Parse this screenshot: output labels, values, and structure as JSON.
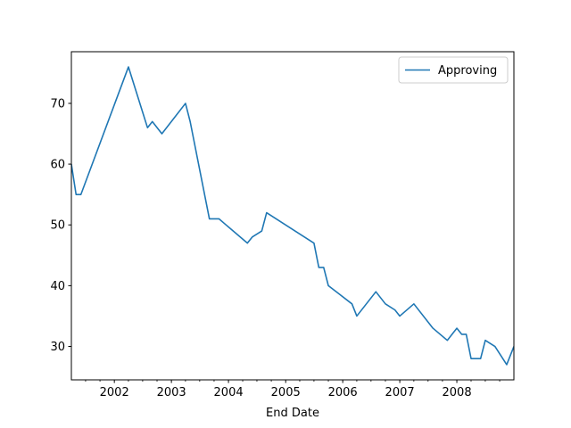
{
  "chart_data": {
    "type": "line",
    "xlabel": "End Date",
    "ylabel": "",
    "legend": {
      "placement": "top-right"
    },
    "grid": false,
    "xlim": [
      "2001-04-01",
      "2008-12-31"
    ],
    "ylim": [
      24.5,
      78.5
    ],
    "x_ticks": [
      {
        "date": "2002-01-01",
        "label": "2002"
      },
      {
        "date": "2003-01-01",
        "label": "2003"
      },
      {
        "date": "2004-01-01",
        "label": "2004"
      },
      {
        "date": "2005-01-01",
        "label": "2005"
      },
      {
        "date": "2006-01-01",
        "label": "2006"
      },
      {
        "date": "2007-01-01",
        "label": "2007"
      },
      {
        "date": "2008-01-01",
        "label": "2008"
      }
    ],
    "y_ticks": [
      30,
      40,
      50,
      60,
      70
    ],
    "series": [
      {
        "name": "Approving",
        "color": "#1f77b4",
        "points": [
          {
            "x": "2001-04-01",
            "y": 60
          },
          {
            "x": "2001-05-01",
            "y": 55
          },
          {
            "x": "2001-06-01",
            "y": 55
          },
          {
            "x": "2002-04-01",
            "y": 76
          },
          {
            "x": "2002-08-01",
            "y": 66
          },
          {
            "x": "2002-09-01",
            "y": 67
          },
          {
            "x": "2002-11-01",
            "y": 65
          },
          {
            "x": "2003-04-01",
            "y": 70
          },
          {
            "x": "2003-05-01",
            "y": 67
          },
          {
            "x": "2003-09-01",
            "y": 51
          },
          {
            "x": "2003-11-01",
            "y": 51
          },
          {
            "x": "2004-05-01",
            "y": 47
          },
          {
            "x": "2004-06-01",
            "y": 48
          },
          {
            "x": "2004-08-01",
            "y": 49
          },
          {
            "x": "2004-09-01",
            "y": 52
          },
          {
            "x": "2005-07-01",
            "y": 47
          },
          {
            "x": "2005-08-01",
            "y": 43
          },
          {
            "x": "2005-09-01",
            "y": 43
          },
          {
            "x": "2005-10-01",
            "y": 40
          },
          {
            "x": "2006-03-01",
            "y": 37
          },
          {
            "x": "2006-04-01",
            "y": 35
          },
          {
            "x": "2006-08-01",
            "y": 39
          },
          {
            "x": "2006-10-01",
            "y": 37
          },
          {
            "x": "2006-12-01",
            "y": 36
          },
          {
            "x": "2007-01-01",
            "y": 35
          },
          {
            "x": "2007-04-01",
            "y": 37
          },
          {
            "x": "2007-08-01",
            "y": 33
          },
          {
            "x": "2007-11-01",
            "y": 31
          },
          {
            "x": "2008-01-01",
            "y": 33
          },
          {
            "x": "2008-02-01",
            "y": 32
          },
          {
            "x": "2008-03-01",
            "y": 32
          },
          {
            "x": "2008-04-01",
            "y": 28
          },
          {
            "x": "2008-06-01",
            "y": 28
          },
          {
            "x": "2008-07-01",
            "y": 31
          },
          {
            "x": "2008-09-01",
            "y": 30
          },
          {
            "x": "2008-11-15",
            "y": 27
          },
          {
            "x": "2008-12-31",
            "y": 30
          }
        ]
      }
    ]
  }
}
